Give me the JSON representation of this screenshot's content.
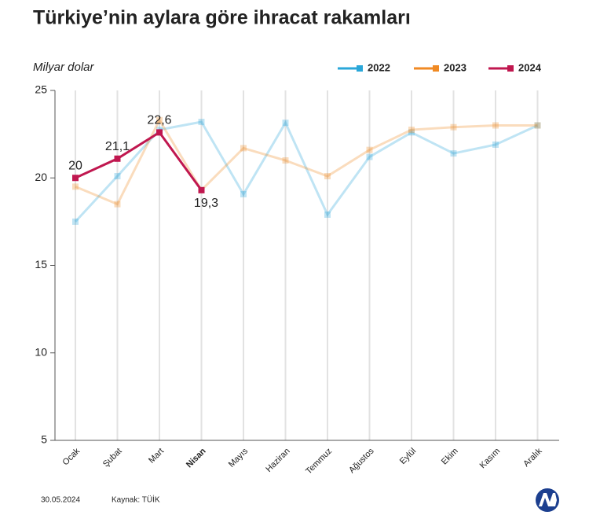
{
  "chart_data": {
    "type": "line",
    "title": "Türkiye’nin aylara göre ihracat rakamları",
    "y_axis_label": "Milyar dolar",
    "categories": [
      "Ocak",
      "Şubat",
      "Mart",
      "Nisan",
      "Mayıs",
      "Haziran",
      "Temmuz",
      "Ağustos",
      "Eylül",
      "Ekim",
      "Kasım",
      "Aralık"
    ],
    "highlight": "Nisan",
    "series": [
      {
        "name": "2022",
        "color": "#2aa7d9",
        "values": [
          17.5,
          20.1,
          22.75,
          23.2,
          19.07,
          23.15,
          17.9,
          21.2,
          22.6,
          21.4,
          21.9,
          23.0
        ]
      },
      {
        "name": "2023",
        "color": "#f08a24",
        "values": [
          19.5,
          18.5,
          23.3,
          19.3,
          21.7,
          21.0,
          20.1,
          21.6,
          22.75,
          22.9,
          23.0,
          23.0
        ]
      },
      {
        "name": "2024",
        "color": "#c0174f",
        "values": [
          20,
          21.1,
          22.6,
          19.3,
          null,
          null,
          null,
          null,
          null,
          null,
          null,
          null
        ],
        "value_labels": [
          "20",
          "21,1",
          "22,6",
          "19,3",
          null,
          null,
          null,
          null,
          null,
          null,
          null,
          null
        ]
      }
    ],
    "ylim": [
      5,
      25
    ],
    "yticks": [
      5,
      10,
      15,
      20,
      25
    ],
    "date": "30.05.2024",
    "source": "Kaynak: TÜİK"
  }
}
